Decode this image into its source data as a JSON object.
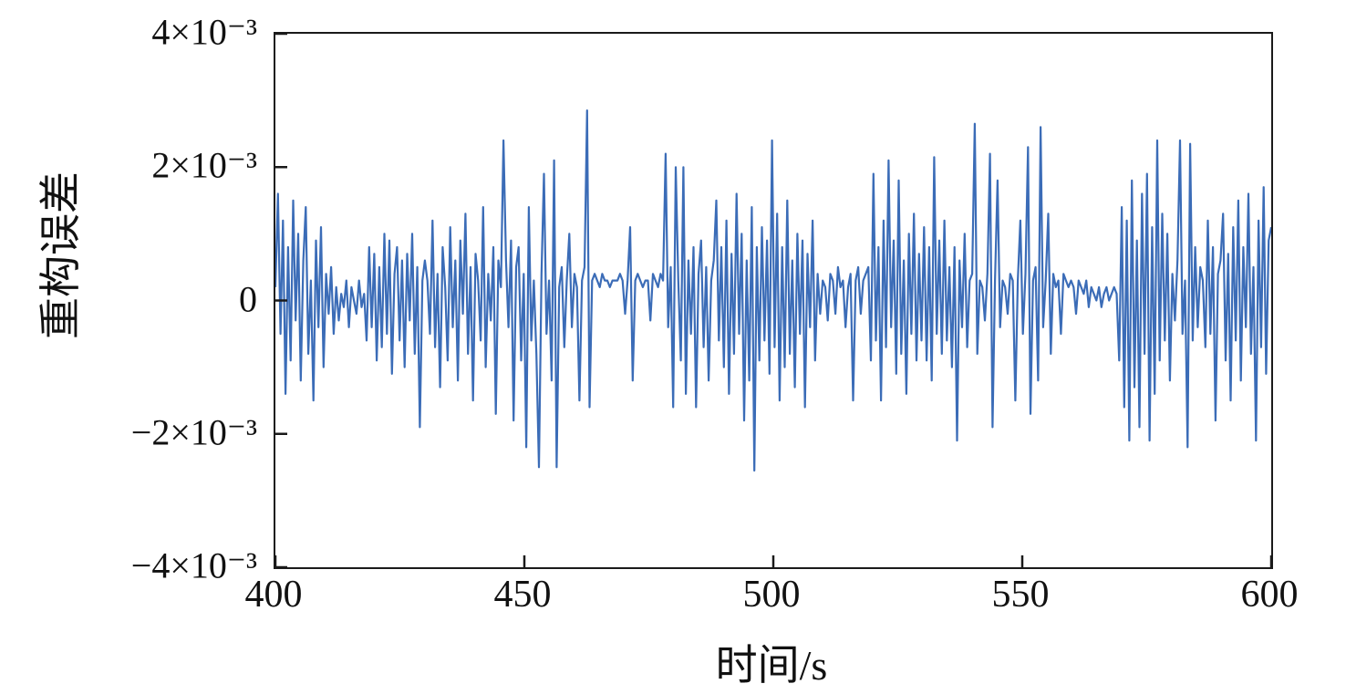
{
  "figure": {
    "background": "#ffffff",
    "axis_color": "#1a1a1a",
    "tick_color": "#1a1a1a"
  },
  "chart_data": {
    "type": "line",
    "title": "",
    "xlabel": "时间/s",
    "ylabel": "重构误差",
    "xlim": [
      400,
      600
    ],
    "ylim": [
      -0.004,
      0.004
    ],
    "grid": false,
    "legend": null,
    "line_color": "#3b6cb7",
    "line_width": 2.2,
    "x_ticks": {
      "values": [
        400,
        450,
        500,
        550,
        600
      ],
      "labels": [
        "400",
        "450",
        "500",
        "550",
        "600"
      ]
    },
    "y_ticks": {
      "values": [
        0.004,
        0.002,
        0,
        -0.002,
        -0.004
      ],
      "labels": [
        "4×10⁻³",
        "2×10⁻³",
        "0",
        "−2×10⁻³",
        "−4×10⁻³"
      ]
    },
    "series": [
      {
        "name": "重构误差",
        "x_start": 400,
        "x_end": 600,
        "y_scale": 0.001,
        "values_e3": [
          0.2,
          1.6,
          -0.5,
          1.2,
          -1.4,
          0.8,
          -0.9,
          1.5,
          -0.3,
          1.0,
          -1.2,
          0.6,
          1.4,
          -0.8,
          0.3,
          -1.5,
          0.9,
          -0.4,
          1.1,
          -1.0,
          0.4,
          -0.2,
          0.5,
          -0.5,
          0.2,
          -0.3,
          0.1,
          -0.1,
          0.3,
          -0.4,
          0.2,
          0.0,
          -0.2,
          0.3,
          -0.1,
          0.1,
          -0.6,
          0.8,
          -0.4,
          0.7,
          -0.9,
          0.5,
          -0.7,
          1.0,
          -0.5,
          0.9,
          -1.1,
          0.4,
          0.8,
          -0.6,
          0.6,
          -1.0,
          0.7,
          -0.3,
          1.0,
          -0.8,
          0.5,
          -1.9,
          0.3,
          0.6,
          0.3,
          -0.5,
          1.2,
          -0.7,
          0.4,
          -1.3,
          0.8,
          0.2,
          -0.9,
          1.1,
          -0.4,
          0.6,
          -1.2,
          0.9,
          -0.2,
          1.3,
          -0.8,
          0.5,
          -1.5,
          0.7,
          0.3,
          -0.6,
          1.4,
          -1.0,
          0.4,
          -0.3,
          0.8,
          -1.7,
          0.6,
          0.2,
          2.4,
          0.6,
          -0.4,
          0.9,
          -1.8,
          0.5,
          0.8,
          -0.9,
          0.4,
          -2.2,
          1.4,
          -0.6,
          0.3,
          -0.8,
          -2.5,
          0.4,
          1.9,
          -0.5,
          0.3,
          -1.2,
          2.1,
          -2.5,
          0.2,
          0.5,
          -0.7,
          0.3,
          1.0,
          -0.4,
          0.4,
          0.2,
          -1.5,
          0.3,
          0.5,
          2.85,
          -1.6,
          0.3,
          0.4,
          0.3,
          0.2,
          0.4,
          0.3,
          0.3,
          0.2,
          0.3,
          0.3,
          0.3,
          0.4,
          0.3,
          -0.2,
          0.3,
          1.1,
          -1.2,
          0.3,
          0.4,
          0.3,
          0.2,
          0.3,
          0.3,
          -0.3,
          0.4,
          0.3,
          0.2,
          0.4,
          0.3,
          2.2,
          -0.4,
          0.5,
          -1.6,
          2.0,
          0.3,
          -0.9,
          2.0,
          -1.4,
          0.6,
          -0.5,
          0.8,
          -1.6,
          0.4,
          0.9,
          -0.7,
          0.5,
          -1.2,
          0.3,
          0.6,
          1.5,
          -0.6,
          0.8,
          -1.0,
          1.2,
          -1.4,
          0.7,
          -0.8,
          1.6,
          -0.5,
          1.0,
          -1.8,
          0.6,
          -1.2,
          1.4,
          -2.55,
          0.8,
          -0.9,
          1.1,
          -0.6,
          0.9,
          -1.1,
          2.4,
          -0.7,
          1.3,
          -1.5,
          0.8,
          -1.0,
          1.5,
          -0.8,
          0.6,
          -1.3,
          1.0,
          -0.5,
          0.9,
          -1.6,
          0.7,
          -0.4,
          1.2,
          -0.9,
          0.4,
          -0.2,
          0.3,
          0.2,
          -0.3,
          0.4,
          0.3,
          -0.2,
          0.5,
          0.2,
          0.3,
          -0.4,
          0.2,
          0.4,
          -1.5,
          0.3,
          0.5,
          -0.2,
          0.3,
          0.4,
          0.5,
          -0.9,
          1.9,
          -0.6,
          0.8,
          -1.5,
          1.2,
          -0.7,
          2.1,
          -0.4,
          0.9,
          -1.1,
          1.8,
          -0.8,
          0.6,
          -1.4,
          1.0,
          -0.5,
          1.3,
          -0.9,
          0.7,
          -0.6,
          1.1,
          -0.9,
          0.8,
          -1.2,
          2.15,
          -0.5,
          0.9,
          -0.8,
          1.2,
          -0.6,
          0.5,
          -1.0,
          0.8,
          -2.1,
          0.6,
          -0.4,
          1.0,
          -0.7,
          0.3,
          0.4,
          2.65,
          -0.8,
          0.3,
          0.2,
          -0.3,
          0.4,
          2.2,
          -1.9,
          0.3,
          1.8,
          -0.4,
          0.3,
          0.2,
          -0.2,
          0.4,
          0.3,
          -1.5,
          0.3,
          1.2,
          -0.5,
          0.4,
          2.3,
          -1.7,
          0.3,
          0.5,
          -1.2,
          2.6,
          -0.4,
          0.3,
          1.3,
          -0.8,
          0.4,
          0.2,
          0.3,
          -0.5,
          0.4,
          0.3,
          0.2,
          0.3,
          0.2,
          -0.2,
          0.3,
          0.2,
          0.1,
          0.3,
          -0.1,
          0.2,
          0.1,
          0.0,
          0.2,
          -0.1,
          0.1,
          0.2,
          0.0,
          0.1,
          0.2,
          0.1,
          -0.9,
          1.4,
          -1.6,
          1.2,
          -2.1,
          1.8,
          -1.3,
          0.9,
          -1.9,
          1.6,
          -0.8,
          1.9,
          -2.1,
          1.1,
          -1.4,
          2.4,
          -0.9,
          1.3,
          -0.6,
          1.0,
          -1.2,
          0.4,
          -0.3,
          0.6,
          2.4,
          -0.5,
          0.3,
          -2.2,
          2.35,
          -0.6,
          0.8,
          -0.4,
          0.5,
          0.3,
          -0.7,
          1.2,
          -0.5,
          0.8,
          -1.8,
          0.4,
          0.6,
          1.3,
          -0.9,
          0.7,
          -1.5,
          1.1,
          -0.6,
          1.5,
          -1.2,
          0.8,
          -0.4,
          1.6,
          -0.8,
          0.5,
          -2.1,
          1.2,
          -0.7,
          1.7,
          -1.1,
          0.9,
          1.1
        ]
      }
    ]
  }
}
